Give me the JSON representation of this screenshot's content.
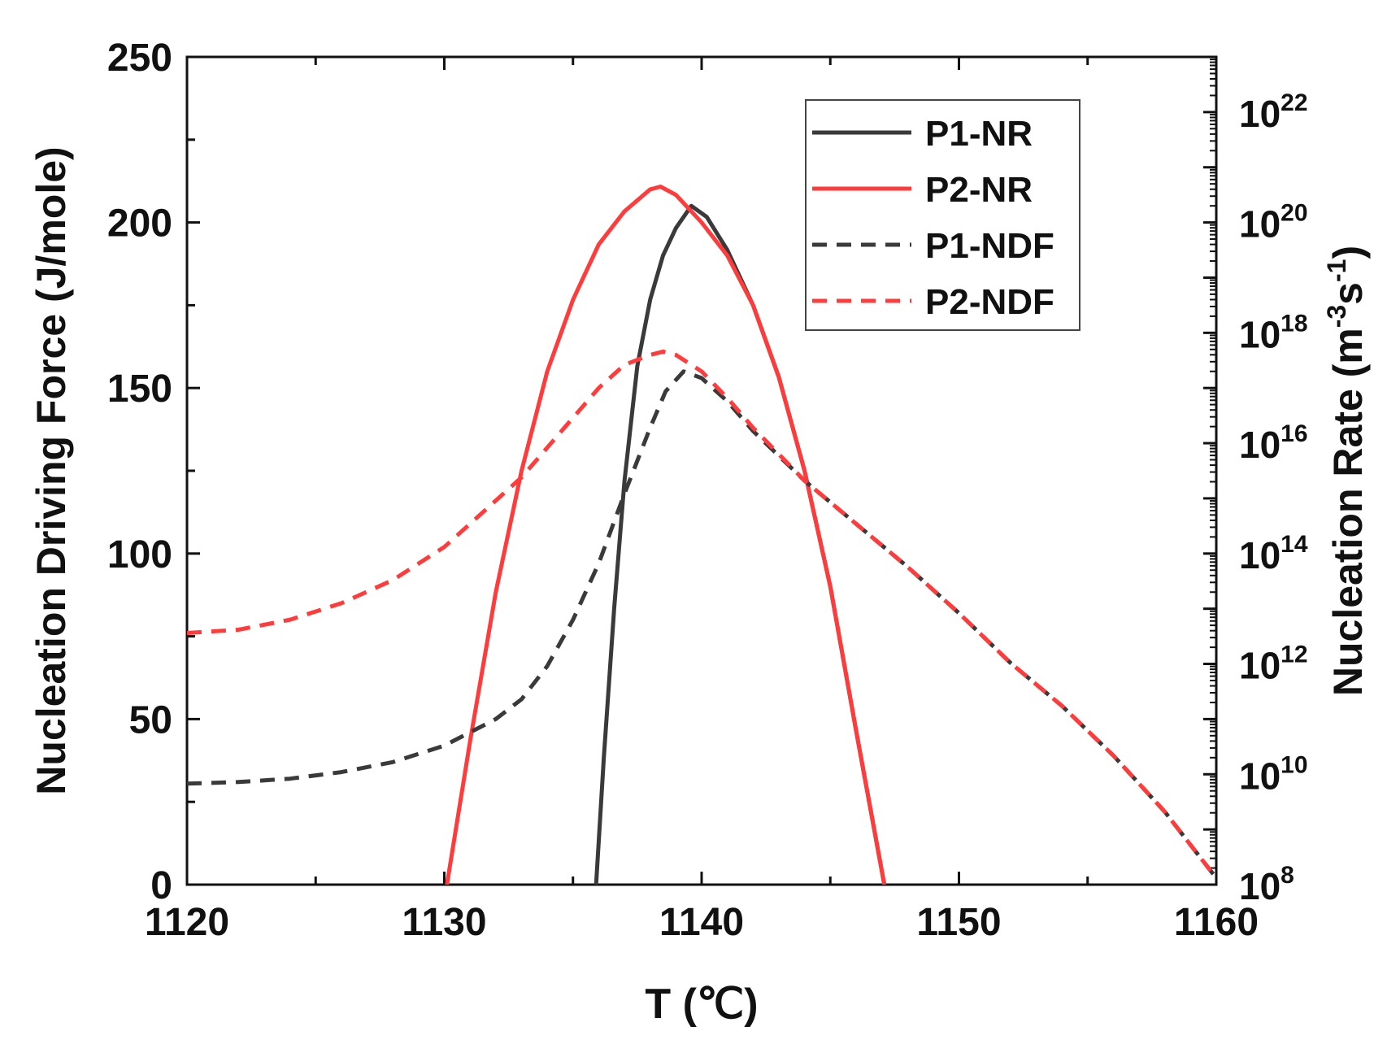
{
  "chart_data": {
    "type": "line",
    "xlabel": "T (℃)",
    "ylabel": "Nucleation Driving Force (J/mole)",
    "ylabel_right": "Nucleation Rate (m-3s-1)",
    "ylabel_right_parts": {
      "base1": "Nucleation Rate (m",
      "exp1": "-3",
      "base2": "s",
      "exp2": "-1",
      "close": ")"
    },
    "xlim": [
      1120,
      1160
    ],
    "ylim": [
      0,
      250
    ],
    "y2_log10_lim": [
      8,
      23
    ],
    "x_ticks": [
      "1120",
      "1130",
      "1140",
      "1150",
      "1160"
    ],
    "y_ticks": [
      "0",
      "50",
      "100",
      "150",
      "200",
      "250"
    ],
    "y2_ticks": [
      {
        "base": "10",
        "exp": "8"
      },
      {
        "base": "10",
        "exp": "10"
      },
      {
        "base": "10",
        "exp": "12"
      },
      {
        "base": "10",
        "exp": "14"
      },
      {
        "base": "10",
        "exp": "16"
      },
      {
        "base": "10",
        "exp": "18"
      },
      {
        "base": "10",
        "exp": "20"
      },
      {
        "base": "10",
        "exp": "22"
      }
    ],
    "legend_position": "top-right",
    "series": [
      {
        "name": "P1-NR",
        "axis": "right",
        "style": "solid",
        "color": "#3a3a3a",
        "x": [
          1135.9,
          1136.2,
          1136.6,
          1137.0,
          1137.5,
          1138.0,
          1138.5,
          1139.0,
          1139.6,
          1140.2,
          1141.0,
          1142.0,
          1143.0,
          1144.0,
          1145.0,
          1146.0,
          1147.1
        ],
        "y": [
          8.0,
          10.3,
          13.0,
          15.3,
          17.4,
          18.6,
          19.4,
          19.9,
          20.3,
          20.1,
          19.5,
          18.5,
          17.2,
          15.5,
          13.4,
          10.8,
          8.0
        ]
      },
      {
        "name": "P2-NR",
        "axis": "right",
        "style": "solid",
        "color": "#ff3b3b",
        "x": [
          1130.1,
          1131.0,
          1132.0,
          1133.0,
          1134.0,
          1135.0,
          1136.0,
          1137.0,
          1138.0,
          1138.4,
          1139.0,
          1140.0,
          1141.0,
          1142.0,
          1143.0,
          1144.0,
          1145.0,
          1146.0,
          1147.1
        ],
        "y": [
          8.0,
          10.6,
          13.3,
          15.5,
          17.3,
          18.6,
          19.6,
          20.2,
          20.6,
          20.65,
          20.5,
          20.0,
          19.4,
          18.5,
          17.2,
          15.5,
          13.4,
          10.8,
          8.0
        ]
      },
      {
        "name": "P1-NDF",
        "axis": "left",
        "style": "dashed",
        "color": "#3a3a3a",
        "x": [
          1120,
          1122,
          1124,
          1126,
          1128,
          1130,
          1132,
          1133,
          1134,
          1135,
          1136,
          1137,
          1138,
          1138.6,
          1139.3,
          1140,
          1141,
          1142,
          1144,
          1146,
          1148,
          1150,
          1152,
          1154,
          1156,
          1158,
          1160
        ],
        "y": [
          30.5,
          31,
          32,
          34,
          37,
          42,
          50,
          56,
          66,
          80,
          97,
          118,
          138,
          149,
          155,
          153,
          146,
          137,
          122,
          109,
          96,
          82,
          67,
          54,
          39,
          22,
          2
        ]
      },
      {
        "name": "P2-NDF",
        "axis": "left",
        "style": "dashed",
        "color": "#ff3b3b",
        "x": [
          1120,
          1122,
          1124,
          1126,
          1128,
          1130,
          1131,
          1132,
          1133,
          1134,
          1135,
          1136,
          1137,
          1138,
          1138.5,
          1139,
          1140,
          1141,
          1142,
          1144,
          1146,
          1148,
          1150,
          1152,
          1154,
          1156,
          1158,
          1160
        ],
        "y": [
          76,
          77,
          80,
          85,
          92,
          102,
          109,
          116,
          123,
          132,
          141,
          150,
          157,
          160,
          161,
          160,
          155,
          147,
          138,
          122,
          109,
          96,
          82,
          67,
          54,
          39,
          22,
          2
        ]
      }
    ]
  }
}
